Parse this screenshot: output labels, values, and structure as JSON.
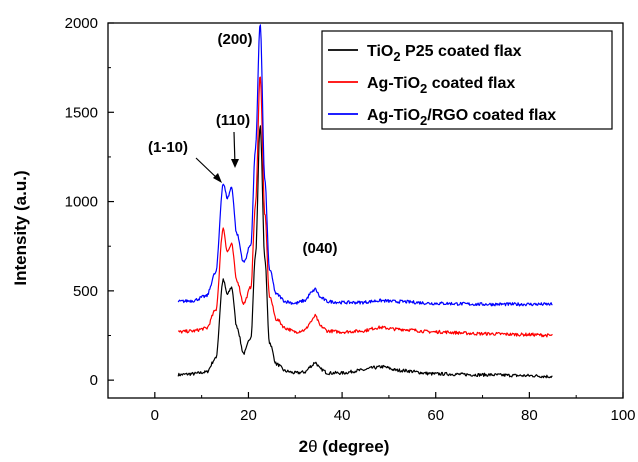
{
  "chart_data": {
    "type": "line",
    "title": "",
    "xlabel_prefix": "2",
    "xlabel_symbol": "θ",
    "xlabel_suffix": " (degree)",
    "ylabel": "Intensity (a.u.)",
    "xlim": [
      -10,
      100
    ],
    "ylim": [
      -100,
      2000
    ],
    "xticks": [
      0,
      20,
      40,
      60,
      80,
      100
    ],
    "yticks": [
      0,
      500,
      1000,
      1500,
      2000
    ],
    "grid": false,
    "legend_position": "top-right",
    "annotations": [
      {
        "text": "(200)",
        "x": 22.5,
        "y": 2000
      },
      {
        "text": "(110)",
        "x": 16.5,
        "y": 1150
      },
      {
        "text": "(1-10)",
        "x": 14.6,
        "y": 1090
      },
      {
        "text": "(040)",
        "x": 34.2,
        "y": 500
      }
    ],
    "series": [
      {
        "legend_main": "TiO",
        "legend_sub": "2",
        "legend_rest": " P25 coated flax",
        "color": "#000000",
        "x": [
          5,
          8,
          11,
          13,
          14.6,
          15.5,
          16.4,
          17.5,
          19,
          20.5,
          21.5,
          22.5,
          23.5,
          24.5,
          26,
          28,
          30,
          32,
          33.5,
          34.2,
          35.5,
          37,
          40,
          44,
          47,
          48.5,
          52,
          60,
          70,
          80,
          85
        ],
        "y": [
          30,
          35,
          45,
          120,
          560,
          480,
          520,
          300,
          150,
          240,
          700,
          1430,
          680,
          210,
          90,
          50,
          40,
          45,
          80,
          100,
          60,
          40,
          40,
          55,
          70,
          75,
          55,
          35,
          30,
          25,
          20
        ]
      },
      {
        "legend_main": "Ag-TiO",
        "legend_sub": "2",
        "legend_rest": " coated flax",
        "color": "#ff0000",
        "x": [
          5,
          8,
          11,
          13,
          14.6,
          15.5,
          16.4,
          17.5,
          19,
          20.5,
          21.5,
          22.5,
          23.5,
          24.5,
          26,
          28,
          30,
          32,
          33.5,
          34.2,
          35.5,
          37,
          40,
          44,
          48,
          52,
          60,
          70,
          80,
          85
        ],
        "y": [
          270,
          275,
          290,
          390,
          850,
          720,
          760,
          560,
          430,
          520,
          980,
          1710,
          930,
          470,
          340,
          290,
          270,
          280,
          330,
          360,
          300,
          275,
          270,
          275,
          295,
          285,
          270,
          260,
          255,
          250
        ]
      },
      {
        "legend_main": "Ag-TiO",
        "legend_sub": "2",
        "legend_rest": "/RGO coated flax",
        "color": "#0000ff",
        "x": [
          5,
          8,
          11,
          13,
          14.6,
          15.5,
          16.4,
          17.5,
          19,
          20.5,
          21.5,
          22.5,
          23.5,
          24.5,
          26,
          28,
          30,
          32,
          33.5,
          34.2,
          35.5,
          37,
          40,
          44,
          48,
          52,
          60,
          70,
          80,
          85
        ],
        "y": [
          440,
          445,
          470,
          600,
          1100,
          1020,
          1080,
          820,
          660,
          760,
          1300,
          2000,
          1120,
          620,
          480,
          440,
          430,
          445,
          490,
          510,
          460,
          440,
          435,
          435,
          445,
          440,
          430,
          425,
          425,
          425
        ]
      }
    ]
  }
}
